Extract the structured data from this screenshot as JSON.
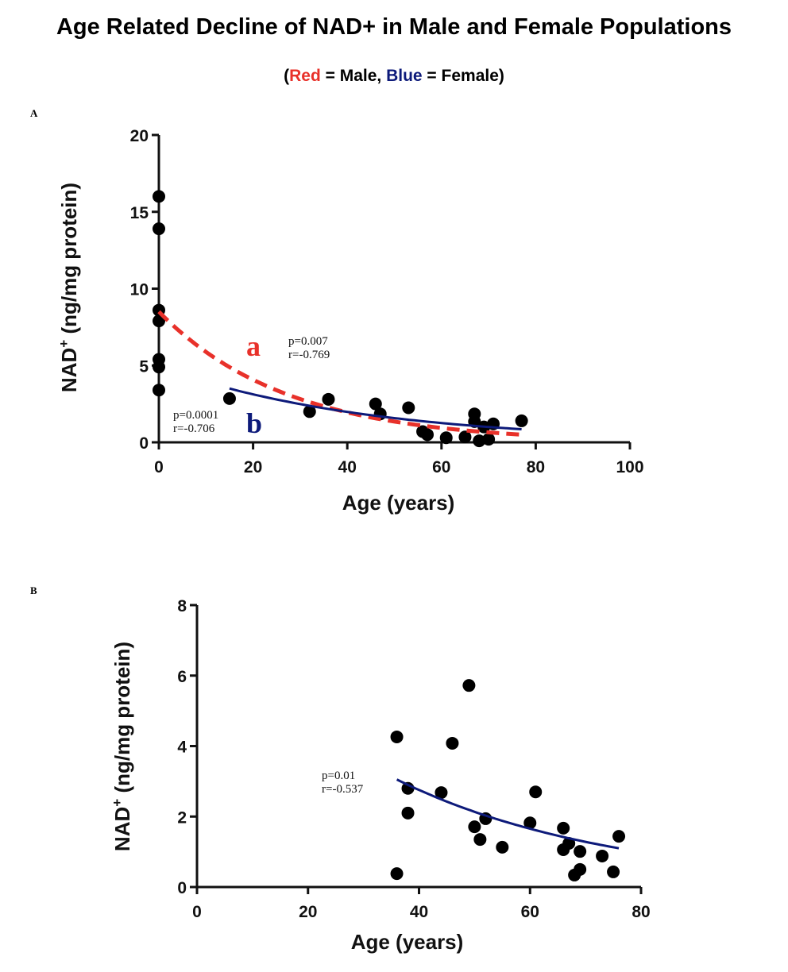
{
  "title": "Age Related Decline of NAD+ in Male and Female Populations",
  "subtitle": {
    "open": "(",
    "red_word": "Red",
    "male_text": " = Male, ",
    "blue_word": "Blue",
    "female_text": " = Female)"
  },
  "colors": {
    "male": "#e8312a",
    "female": "#0d1a7a",
    "points": "#000000"
  },
  "chart_data": [
    {
      "panel": "A",
      "type": "scatter",
      "xlabel": "Age (years)",
      "ylabel": "NAD+ (ng/mg protein)",
      "xlim": [
        0,
        100
      ],
      "ylim": [
        0,
        20
      ],
      "xticks": [
        0,
        20,
        40,
        60,
        80,
        100
      ],
      "yticks": [
        0,
        5,
        10,
        15,
        20
      ],
      "points": [
        [
          0,
          16.0
        ],
        [
          0,
          13.9
        ],
        [
          0,
          8.6
        ],
        [
          0,
          7.9
        ],
        [
          0,
          5.4
        ],
        [
          0,
          4.9
        ],
        [
          0,
          3.4
        ],
        [
          15,
          2.85
        ],
        [
          32,
          2.0
        ],
        [
          36,
          2.8
        ],
        [
          46,
          2.5
        ],
        [
          47,
          1.85
        ],
        [
          53,
          2.25
        ],
        [
          56,
          0.7
        ],
        [
          57,
          0.5
        ],
        [
          61,
          0.3
        ],
        [
          65,
          0.35
        ],
        [
          67,
          1.85
        ],
        [
          67,
          1.35
        ],
        [
          68,
          0.1
        ],
        [
          69,
          1.0
        ],
        [
          70,
          0.2
        ],
        [
          71,
          1.2
        ],
        [
          77,
          1.4
        ]
      ],
      "fits": [
        {
          "label": "a",
          "color": "#e8312a",
          "style": "dashed",
          "model": "exponential",
          "a": 8.5,
          "k": 0.0368,
          "x_range": [
            0,
            77
          ],
          "stats": [
            "p=0.007",
            "r=-0.769"
          ]
        },
        {
          "label": "b",
          "color": "#0d1a7a",
          "style": "solid",
          "model": "exponential",
          "a": 4.93,
          "k": 0.0228,
          "x_range": [
            15,
            77
          ],
          "stats": [
            "p=0.0001",
            "r=-0.706"
          ]
        }
      ],
      "grid": false
    },
    {
      "panel": "B",
      "type": "scatter",
      "xlabel": "Age (years)",
      "ylabel": "NAD+ (ng/mg protein)",
      "xlim": [
        0,
        80
      ],
      "ylim": [
        0,
        8
      ],
      "xticks": [
        0,
        20,
        40,
        60,
        80
      ],
      "yticks": [
        0,
        2,
        4,
        6,
        8
      ],
      "points": [
        [
          36,
          4.26
        ],
        [
          36,
          0.38
        ],
        [
          38,
          2.8
        ],
        [
          38,
          2.1
        ],
        [
          44,
          2.68
        ],
        [
          46,
          4.08
        ],
        [
          49,
          5.72
        ],
        [
          50,
          1.71
        ],
        [
          51,
          1.35
        ],
        [
          52,
          1.94
        ],
        [
          55,
          1.13
        ],
        [
          60,
          1.82
        ],
        [
          61,
          2.7
        ],
        [
          66,
          1.67
        ],
        [
          66,
          1.06
        ],
        [
          67,
          1.24
        ],
        [
          68,
          0.34
        ],
        [
          69,
          1.01
        ],
        [
          69,
          0.5
        ],
        [
          73,
          0.88
        ],
        [
          75,
          0.43
        ],
        [
          76,
          1.44
        ]
      ],
      "fits": [
        {
          "color": "#0d1a7a",
          "style": "solid",
          "model": "exponential",
          "a": 7.64,
          "k": 0.0255,
          "x_range": [
            36,
            76
          ],
          "stats": [
            "p=0.01",
            "r=-0.537"
          ]
        }
      ],
      "grid": false
    }
  ]
}
